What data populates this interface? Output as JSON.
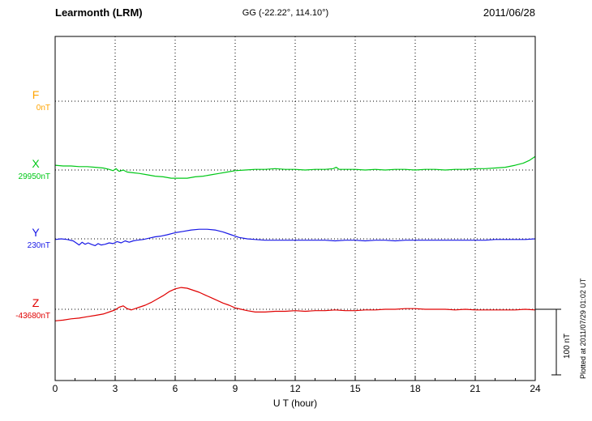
{
  "header": {
    "station": "Learmonth (LRM)",
    "coords": "GG (-22.22°, 114.10°)",
    "date": "2011/06/28"
  },
  "axis": {
    "x_label": "U T (hour)",
    "x_ticks": [
      "0",
      "3",
      "6",
      "9",
      "12",
      "15",
      "18",
      "21",
      "24"
    ]
  },
  "scale_bar": {
    "label": "100 nT"
  },
  "footer_note": "Plotted at 2011/07/29 01:02 UT",
  "chart_data": {
    "type": "line",
    "title": "Learmonth (LRM) magnetogram",
    "date": "2011/06/28",
    "xlabel": "U T (hour)",
    "x_range_hours": [
      0,
      24
    ],
    "x_ticks": [
      0,
      3,
      6,
      9,
      12,
      15,
      18,
      21,
      24
    ],
    "grid": "dotted",
    "scale_reference": "100 nT vertical bar at lower right",
    "units_note": "points are [hour UT, offset in nT from channel baseline]",
    "series": [
      {
        "name": "F",
        "baseline_label": "0nT",
        "color": "#FFA400",
        "visible": false,
        "points": []
      },
      {
        "name": "X",
        "baseline_label": "29950nT",
        "color": "#00C818",
        "visible": true,
        "points": [
          [
            0,
            7
          ],
          [
            0.4,
            6
          ],
          [
            0.8,
            6
          ],
          [
            1.2,
            5
          ],
          [
            1.6,
            5
          ],
          [
            2,
            4
          ],
          [
            2.4,
            3
          ],
          [
            2.7,
            1
          ],
          [
            2.9,
            -1
          ],
          [
            3.05,
            2
          ],
          [
            3.2,
            -2
          ],
          [
            3.4,
            0
          ],
          [
            3.6,
            -3
          ],
          [
            3.9,
            -4
          ],
          [
            4.2,
            -5
          ],
          [
            4.6,
            -7
          ],
          [
            5,
            -9
          ],
          [
            5.4,
            -10
          ],
          [
            5.8,
            -12
          ],
          [
            6.2,
            -12
          ],
          [
            6.6,
            -12
          ],
          [
            7,
            -10
          ],
          [
            7.4,
            -9
          ],
          [
            7.8,
            -7
          ],
          [
            8.2,
            -5
          ],
          [
            8.6,
            -3
          ],
          [
            9,
            -1
          ],
          [
            9.5,
            0
          ],
          [
            10,
            1
          ],
          [
            10.5,
            1
          ],
          [
            11,
            2
          ],
          [
            11.5,
            1
          ],
          [
            12,
            1
          ],
          [
            12.5,
            0
          ],
          [
            13,
            1
          ],
          [
            13.5,
            1
          ],
          [
            13.9,
            2
          ],
          [
            14.05,
            4
          ],
          [
            14.2,
            1
          ],
          [
            14.6,
            1
          ],
          [
            15,
            1
          ],
          [
            15.5,
            0
          ],
          [
            16,
            1
          ],
          [
            16.5,
            0
          ],
          [
            17,
            1
          ],
          [
            17.5,
            1
          ],
          [
            18,
            0
          ],
          [
            18.5,
            1
          ],
          [
            19,
            1
          ],
          [
            19.5,
            0
          ],
          [
            20,
            1
          ],
          [
            20.5,
            1
          ],
          [
            21,
            2
          ],
          [
            21.5,
            2
          ],
          [
            22,
            3
          ],
          [
            22.5,
            4
          ],
          [
            23,
            7
          ],
          [
            23.4,
            10
          ],
          [
            23.7,
            14
          ],
          [
            24,
            20
          ]
        ]
      },
      {
        "name": "Y",
        "baseline_label": "230nT",
        "color": "#1818E6",
        "visible": true,
        "points": [
          [
            0,
            -1
          ],
          [
            0.3,
            0
          ],
          [
            0.6,
            -1
          ],
          [
            0.9,
            -3
          ],
          [
            1.05,
            -6
          ],
          [
            1.2,
            -9
          ],
          [
            1.35,
            -5
          ],
          [
            1.5,
            -8
          ],
          [
            1.65,
            -6
          ],
          [
            1.8,
            -8
          ],
          [
            2,
            -10
          ],
          [
            2.15,
            -7
          ],
          [
            2.3,
            -9
          ],
          [
            2.5,
            -8
          ],
          [
            2.7,
            -6
          ],
          [
            2.9,
            -7
          ],
          [
            3.1,
            -4
          ],
          [
            3.3,
            -6
          ],
          [
            3.5,
            -3
          ],
          [
            3.7,
            -5
          ],
          [
            3.9,
            -3
          ],
          [
            4.1,
            -2
          ],
          [
            4.4,
            -1
          ],
          [
            4.7,
            1
          ],
          [
            5,
            3
          ],
          [
            5.3,
            4
          ],
          [
            5.6,
            6
          ],
          [
            6,
            9
          ],
          [
            6.4,
            11
          ],
          [
            6.8,
            13
          ],
          [
            7.2,
            14
          ],
          [
            7.6,
            14
          ],
          [
            8,
            13
          ],
          [
            8.4,
            10
          ],
          [
            8.8,
            6
          ],
          [
            9.2,
            2
          ],
          [
            9.6,
            0
          ],
          [
            10,
            -1
          ],
          [
            10.5,
            -2
          ],
          [
            11,
            -2
          ],
          [
            11.5,
            -2
          ],
          [
            12,
            -2
          ],
          [
            12.5,
            -2
          ],
          [
            13,
            -2
          ],
          [
            13.5,
            -2
          ],
          [
            14,
            -3
          ],
          [
            14.5,
            -2
          ],
          [
            15,
            -2
          ],
          [
            15.5,
            -3
          ],
          [
            16,
            -2
          ],
          [
            16.5,
            -2
          ],
          [
            17,
            -3
          ],
          [
            17.5,
            -2
          ],
          [
            18,
            -2
          ],
          [
            18.5,
            -2
          ],
          [
            19,
            -2
          ],
          [
            19.5,
            -2
          ],
          [
            20,
            -2
          ],
          [
            20.5,
            -2
          ],
          [
            21,
            -2
          ],
          [
            21.5,
            -2
          ],
          [
            22,
            -1
          ],
          [
            22.5,
            -1
          ],
          [
            23,
            -1
          ],
          [
            23.5,
            -1
          ],
          [
            24,
            0
          ]
        ]
      },
      {
        "name": "Z",
        "baseline_label": "-43680nT",
        "color": "#E00000",
        "visible": true,
        "points": [
          [
            0,
            -17
          ],
          [
            0.4,
            -16
          ],
          [
            0.8,
            -14
          ],
          [
            1.2,
            -13
          ],
          [
            1.6,
            -11
          ],
          [
            2,
            -9
          ],
          [
            2.4,
            -7
          ],
          [
            2.8,
            -3
          ],
          [
            3,
            -1
          ],
          [
            3.2,
            3
          ],
          [
            3.4,
            5
          ],
          [
            3.6,
            1
          ],
          [
            3.8,
            -1
          ],
          [
            4,
            1
          ],
          [
            4.2,
            3
          ],
          [
            4.5,
            6
          ],
          [
            4.8,
            10
          ],
          [
            5.1,
            15
          ],
          [
            5.4,
            20
          ],
          [
            5.7,
            26
          ],
          [
            6,
            30
          ],
          [
            6.3,
            32
          ],
          [
            6.6,
            31
          ],
          [
            6.9,
            28
          ],
          [
            7.2,
            25
          ],
          [
            7.5,
            21
          ],
          [
            7.8,
            17
          ],
          [
            8.1,
            13
          ],
          [
            8.4,
            9
          ],
          [
            8.7,
            6
          ],
          [
            9,
            2
          ],
          [
            9.3,
            0
          ],
          [
            9.6,
            -2
          ],
          [
            10,
            -4
          ],
          [
            10.5,
            -4
          ],
          [
            11,
            -3
          ],
          [
            11.5,
            -3
          ],
          [
            12,
            -2
          ],
          [
            12.5,
            -3
          ],
          [
            13,
            -2
          ],
          [
            13.5,
            -2
          ],
          [
            14,
            -1
          ],
          [
            14.5,
            -2
          ],
          [
            15,
            -2
          ],
          [
            15.5,
            -1
          ],
          [
            16,
            -1
          ],
          [
            16.5,
            0
          ],
          [
            17,
            0
          ],
          [
            17.5,
            1
          ],
          [
            18,
            1
          ],
          [
            18.5,
            0
          ],
          [
            19,
            0
          ],
          [
            19.5,
            0
          ],
          [
            20,
            -1
          ],
          [
            20.5,
            0
          ],
          [
            21,
            -1
          ],
          [
            21.5,
            -1
          ],
          [
            22,
            -1
          ],
          [
            22.5,
            -1
          ],
          [
            23,
            -1
          ],
          [
            23.5,
            0
          ],
          [
            24,
            -1
          ]
        ]
      }
    ]
  }
}
